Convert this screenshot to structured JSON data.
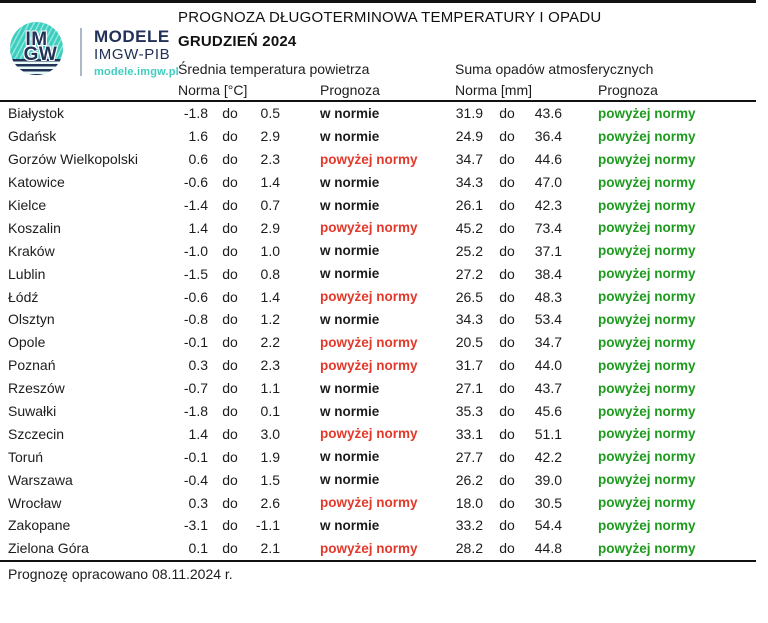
{
  "header": {
    "title": "PROGNOZA DŁUGOTERMINOWA TEMPERATURY I OPADU",
    "subtitle": "GRUDZIEŃ 2024",
    "logo": {
      "circle_line1": "IM",
      "circle_line2": "GW",
      "name": "MODELE",
      "org": "IMGW-PIB",
      "url": "modele.imgw.pl"
    }
  },
  "table": {
    "group_headers": {
      "temperature": "Średnia temperatura powietrza",
      "precipitation": "Suma opadów atmosferycznych"
    },
    "column_headers": {
      "temp_norm": "Norma [°C]",
      "temp_forecast": "Prognoza",
      "precip_norm": "Norma [mm]",
      "precip_forecast": "Prognoza"
    },
    "separator_word": "do"
  },
  "colors": {
    "above_norm_temp": "#e2392b",
    "above_norm_precip": "#1e9b1e",
    "logo_navy": "#223158",
    "logo_teal": "#3ecdbf"
  },
  "rows": [
    {
      "city": "Białystok",
      "t_min": "-1.8",
      "t_max": "0.5",
      "t_prog": "w normie",
      "t_status": "normal",
      "p_min": "31.9",
      "p_max": "43.6",
      "p_prog": "powyżej normy",
      "p_status": "above"
    },
    {
      "city": "Gdańsk",
      "t_min": "1.6",
      "t_max": "2.9",
      "t_prog": "w normie",
      "t_status": "normal",
      "p_min": "24.9",
      "p_max": "36.4",
      "p_prog": "powyżej normy",
      "p_status": "above"
    },
    {
      "city": "Gorzów Wielkopolski",
      "t_min": "0.6",
      "t_max": "2.3",
      "t_prog": "powyżej normy",
      "t_status": "above",
      "p_min": "34.7",
      "p_max": "44.6",
      "p_prog": "powyżej normy",
      "p_status": "above"
    },
    {
      "city": "Katowice",
      "t_min": "-0.6",
      "t_max": "1.4",
      "t_prog": "w normie",
      "t_status": "normal",
      "p_min": "34.3",
      "p_max": "47.0",
      "p_prog": "powyżej normy",
      "p_status": "above"
    },
    {
      "city": "Kielce",
      "t_min": "-1.4",
      "t_max": "0.7",
      "t_prog": "w normie",
      "t_status": "normal",
      "p_min": "26.1",
      "p_max": "42.3",
      "p_prog": "powyżej normy",
      "p_status": "above"
    },
    {
      "city": "Koszalin",
      "t_min": "1.4",
      "t_max": "2.9",
      "t_prog": "powyżej normy",
      "t_status": "above",
      "p_min": "45.2",
      "p_max": "73.4",
      "p_prog": "powyżej normy",
      "p_status": "above"
    },
    {
      "city": "Kraków",
      "t_min": "-1.0",
      "t_max": "1.0",
      "t_prog": "w normie",
      "t_status": "normal",
      "p_min": "25.2",
      "p_max": "37.1",
      "p_prog": "powyżej normy",
      "p_status": "above"
    },
    {
      "city": "Lublin",
      "t_min": "-1.5",
      "t_max": "0.8",
      "t_prog": "w normie",
      "t_status": "normal",
      "p_min": "27.2",
      "p_max": "38.4",
      "p_prog": "powyżej normy",
      "p_status": "above"
    },
    {
      "city": "Łódź",
      "t_min": "-0.6",
      "t_max": "1.4",
      "t_prog": "powyżej normy",
      "t_status": "above",
      "p_min": "26.5",
      "p_max": "48.3",
      "p_prog": "powyżej normy",
      "p_status": "above"
    },
    {
      "city": "Olsztyn",
      "t_min": "-0.8",
      "t_max": "1.2",
      "t_prog": "w normie",
      "t_status": "normal",
      "p_min": "34.3",
      "p_max": "53.4",
      "p_prog": "powyżej normy",
      "p_status": "above"
    },
    {
      "city": "Opole",
      "t_min": "-0.1",
      "t_max": "2.2",
      "t_prog": "powyżej normy",
      "t_status": "above",
      "p_min": "20.5",
      "p_max": "34.7",
      "p_prog": "powyżej normy",
      "p_status": "above"
    },
    {
      "city": "Poznań",
      "t_min": "0.3",
      "t_max": "2.3",
      "t_prog": "powyżej normy",
      "t_status": "above",
      "p_min": "31.7",
      "p_max": "44.0",
      "p_prog": "powyżej normy",
      "p_status": "above"
    },
    {
      "city": "Rzeszów",
      "t_min": "-0.7",
      "t_max": "1.1",
      "t_prog": "w normie",
      "t_status": "normal",
      "p_min": "27.1",
      "p_max": "43.7",
      "p_prog": "powyżej normy",
      "p_status": "above"
    },
    {
      "city": "Suwałki",
      "t_min": "-1.8",
      "t_max": "0.1",
      "t_prog": "w normie",
      "t_status": "normal",
      "p_min": "35.3",
      "p_max": "45.6",
      "p_prog": "powyżej normy",
      "p_status": "above"
    },
    {
      "city": "Szczecin",
      "t_min": "1.4",
      "t_max": "3.0",
      "t_prog": "powyżej normy",
      "t_status": "above",
      "p_min": "33.1",
      "p_max": "51.1",
      "p_prog": "powyżej normy",
      "p_status": "above"
    },
    {
      "city": "Toruń",
      "t_min": "-0.1",
      "t_max": "1.9",
      "t_prog": "w normie",
      "t_status": "normal",
      "p_min": "27.7",
      "p_max": "42.2",
      "p_prog": "powyżej normy",
      "p_status": "above"
    },
    {
      "city": "Warszawa",
      "t_min": "-0.4",
      "t_max": "1.5",
      "t_prog": "w normie",
      "t_status": "normal",
      "p_min": "26.2",
      "p_max": "39.0",
      "p_prog": "powyżej normy",
      "p_status": "above"
    },
    {
      "city": "Wrocław",
      "t_min": "0.3",
      "t_max": "2.6",
      "t_prog": "powyżej normy",
      "t_status": "above",
      "p_min": "18.0",
      "p_max": "30.5",
      "p_prog": "powyżej normy",
      "p_status": "above"
    },
    {
      "city": "Zakopane",
      "t_min": "-3.1",
      "t_max": "-1.1",
      "t_prog": "w normie",
      "t_status": "normal",
      "p_min": "33.2",
      "p_max": "54.4",
      "p_prog": "powyżej normy",
      "p_status": "above"
    },
    {
      "city": "Zielona Góra",
      "t_min": "0.1",
      "t_max": "2.1",
      "t_prog": "powyżej normy",
      "t_status": "above",
      "p_min": "28.2",
      "p_max": "44.8",
      "p_prog": "powyżej normy",
      "p_status": "above"
    }
  ],
  "footer": {
    "note": "Prognozę opracowano 08.11.2024 r."
  }
}
